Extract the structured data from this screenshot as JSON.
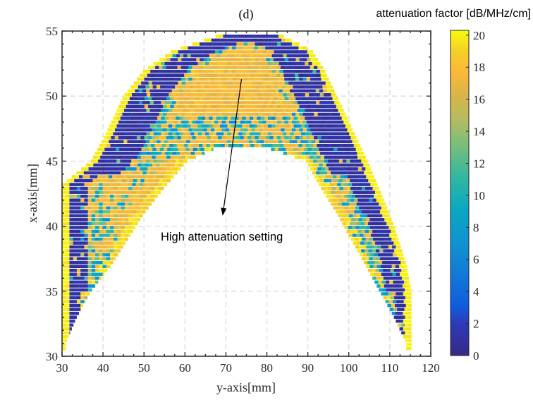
{
  "chart_data": {
    "type": "scatter",
    "title": "(d)",
    "xlabel": "y-axis[mm]",
    "ylabel": "x-axis[mm]",
    "xlim": [
      30,
      120
    ],
    "ylim": [
      30,
      55
    ],
    "xticks": [
      30,
      40,
      50,
      60,
      70,
      80,
      90,
      100,
      110,
      120
    ],
    "yticks": [
      30,
      35,
      40,
      45,
      50,
      55
    ],
    "xtick_labels": [
      "30",
      "40",
      "50",
      "60",
      "70",
      "80",
      "90",
      "100",
      "110",
      "120"
    ],
    "ytick_labels": [
      "30",
      "35",
      "40",
      "45",
      "50",
      "55"
    ],
    "grid": true,
    "grid_style": "dashed",
    "annotation": {
      "text": "High attenuation setting",
      "text_pos": [
        69,
        38.9
      ],
      "arrow_from": [
        73.8,
        51.3
      ],
      "arrow_to": [
        69.2,
        40.8
      ]
    },
    "colorbar": {
      "title": "attenuation factor [dB/MHz/cm]",
      "range": [
        0,
        20.3
      ],
      "ticks": [
        0,
        2,
        4,
        6,
        8,
        10,
        12,
        14,
        16,
        18,
        20
      ],
      "tick_labels": [
        "0",
        "2",
        "4",
        "6",
        "8",
        "10",
        "12",
        "14",
        "16",
        "18",
        "20"
      ],
      "colormap": "parula",
      "placement": "right"
    },
    "row_spacing_mm": 0.3,
    "region": {
      "description": "Arch-shaped band of measurement points; values mostly 15-20 with a low-attenuation (~0-2) band along the outer edge and scattered 6-12 values along an inner band",
      "outer_left": [
        [
          54.6,
          67.5
        ],
        [
          53.5,
          57
        ],
        [
          52,
          50
        ],
        [
          50,
          45
        ],
        [
          47,
          40.5
        ],
        [
          45,
          37
        ],
        [
          43.2,
          30
        ],
        [
          30.5,
          30
        ]
      ],
      "outer_right": [
        [
          54.6,
          84
        ],
        [
          53.5,
          91
        ],
        [
          52,
          94
        ],
        [
          50,
          97
        ],
        [
          47,
          101.5
        ],
        [
          45,
          104.5
        ],
        [
          42,
          108.5
        ],
        [
          40,
          111
        ],
        [
          37,
          114
        ],
        [
          35,
          115.2
        ],
        [
          30.5,
          115.2
        ]
      ],
      "inner_left": [
        [
          46.2,
          69
        ],
        [
          45.5,
          64
        ],
        [
          45,
          60.5
        ],
        [
          43,
          55
        ],
        [
          41,
          50
        ],
        [
          39,
          46
        ],
        [
          37,
          42
        ],
        [
          35,
          37
        ],
        [
          33,
          33.5
        ],
        [
          31,
          30.8
        ]
      ],
      "inner_right": [
        [
          46.2,
          78
        ],
        [
          45.5,
          85
        ],
        [
          45,
          89.5
        ],
        [
          43,
          93
        ],
        [
          41,
          97
        ],
        [
          39,
          100.5
        ],
        [
          37,
          104
        ],
        [
          35,
          107.5
        ],
        [
          33,
          111
        ],
        [
          31,
          114
        ]
      ],
      "low_band_width_mm": 5.5,
      "dominant_value": 17.5,
      "edge_value": 19.5,
      "low_value": 0.5,
      "mid_values": [
        7,
        9,
        11,
        13,
        14.5
      ]
    }
  }
}
